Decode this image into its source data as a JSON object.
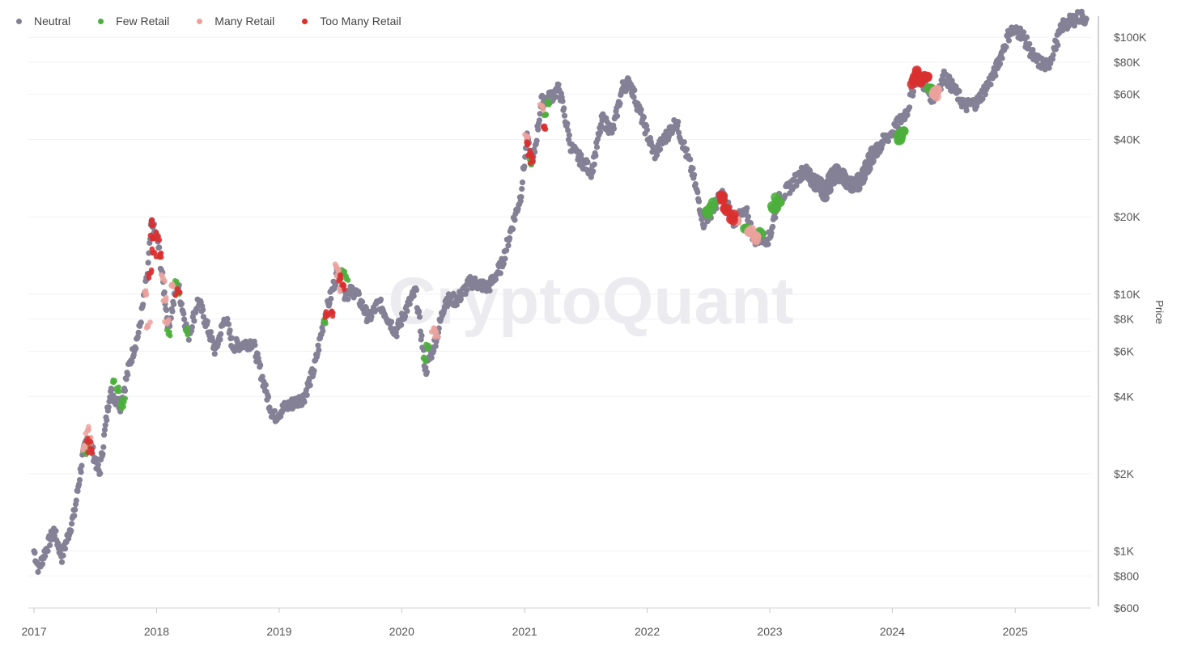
{
  "watermark": "CryptoQuant",
  "legend": [
    {
      "label": "Neutral",
      "color": "#848196"
    },
    {
      "label": "Few Retail",
      "color": "#4caf3c"
    },
    {
      "label": "Many Retail",
      "color": "#eba29c"
    },
    {
      "label": "Too Many Retail",
      "color": "#d93030"
    }
  ],
  "chart_data": {
    "type": "scatter",
    "title": "",
    "xlabel": "",
    "ylabel": "Price",
    "y_scale": "log",
    "ylim": [
      600,
      130000
    ],
    "xlim": [
      "2016-12-15",
      "2025-08-15"
    ],
    "x_ticks": [
      "2017",
      "2018",
      "2019",
      "2020",
      "2021",
      "2022",
      "2023",
      "2024",
      "2025"
    ],
    "y_ticks": [
      {
        "value": 100000,
        "label": "$100K"
      },
      {
        "value": 80000,
        "label": "$80K"
      },
      {
        "value": 60000,
        "label": "$60K"
      },
      {
        "value": 40000,
        "label": "$40K"
      },
      {
        "value": 20000,
        "label": "$20K"
      },
      {
        "value": 10000,
        "label": "$10K"
      },
      {
        "value": 8000,
        "label": "$8K"
      },
      {
        "value": 6000,
        "label": "$6K"
      },
      {
        "value": 4000,
        "label": "$4K"
      },
      {
        "value": 2000,
        "label": "$2K"
      },
      {
        "value": 1000,
        "label": "$1K"
      },
      {
        "value": 800,
        "label": "$800"
      },
      {
        "value": 600,
        "label": "$600"
      }
    ],
    "legend_position": "top-left",
    "price_path": [
      [
        "2017-01-01",
        1000
      ],
      [
        "2017-01-15",
        850
      ],
      [
        "2017-02-01",
        980
      ],
      [
        "2017-03-01",
        1200
      ],
      [
        "2017-03-25",
        950
      ],
      [
        "2017-05-01",
        1400
      ],
      [
        "2017-05-25",
        2300
      ],
      [
        "2017-06-10",
        2800
      ],
      [
        "2017-07-15",
        2000
      ],
      [
        "2017-08-15",
        4200
      ],
      [
        "2017-09-15",
        3700
      ],
      [
        "2017-10-15",
        5500
      ],
      [
        "2017-11-10",
        7200
      ],
      [
        "2017-12-05",
        12000
      ],
      [
        "2017-12-17",
        19000
      ],
      [
        "2018-01-05",
        16000
      ],
      [
        "2018-02-05",
        7500
      ],
      [
        "2018-03-05",
        11000
      ],
      [
        "2018-04-05",
        6800
      ],
      [
        "2018-05-05",
        9500
      ],
      [
        "2018-06-25",
        6000
      ],
      [
        "2018-07-25",
        8200
      ],
      [
        "2018-08-15",
        6300
      ],
      [
        "2018-10-15",
        6500
      ],
      [
        "2018-11-20",
        4300
      ],
      [
        "2018-12-15",
        3300
      ],
      [
        "2019-01-15",
        3600
      ],
      [
        "2019-03-15",
        3950
      ],
      [
        "2019-04-15",
        5100
      ],
      [
        "2019-05-15",
        8000
      ],
      [
        "2019-06-26",
        12500
      ],
      [
        "2019-07-15",
        10000
      ],
      [
        "2019-08-15",
        10300
      ],
      [
        "2019-09-25",
        8000
      ],
      [
        "2019-10-25",
        9300
      ],
      [
        "2019-12-15",
        7100
      ],
      [
        "2020-01-15",
        8800
      ],
      [
        "2020-02-12",
        10300
      ],
      [
        "2020-03-12",
        5000
      ],
      [
        "2020-04-15",
        6900
      ],
      [
        "2020-05-10",
        9500
      ],
      [
        "2020-06-15",
        9500
      ],
      [
        "2020-07-25",
        11200
      ],
      [
        "2020-09-15",
        10600
      ],
      [
        "2020-10-25",
        13000
      ],
      [
        "2020-11-25",
        18500
      ],
      [
        "2020-12-20",
        24000
      ],
      [
        "2021-01-08",
        40000
      ],
      [
        "2021-01-25",
        32000
      ],
      [
        "2021-02-20",
        56000
      ],
      [
        "2021-03-15",
        58000
      ],
      [
        "2021-04-14",
        63000
      ],
      [
        "2021-05-20",
        37000
      ],
      [
        "2021-06-20",
        33000
      ],
      [
        "2021-07-20",
        30000
      ],
      [
        "2021-08-20",
        48000
      ],
      [
        "2021-09-20",
        43000
      ],
      [
        "2021-10-20",
        64000
      ],
      [
        "2021-11-10",
        67000
      ],
      [
        "2021-12-20",
        47000
      ],
      [
        "2022-01-22",
        35000
      ],
      [
        "2022-03-28",
        47000
      ],
      [
        "2022-05-15",
        30000
      ],
      [
        "2022-06-18",
        19000
      ],
      [
        "2022-08-13",
        24500
      ],
      [
        "2022-09-15",
        19500
      ],
      [
        "2022-10-25",
        20500
      ],
      [
        "2022-11-15",
        16500
      ],
      [
        "2022-12-31",
        16500
      ],
      [
        "2023-01-25",
        23000
      ],
      [
        "2023-04-14",
        30500
      ],
      [
        "2023-06-15",
        25000
      ],
      [
        "2023-07-15",
        30000
      ],
      [
        "2023-09-15",
        26000
      ],
      [
        "2023-11-15",
        37000
      ],
      [
        "2023-12-30",
        42500
      ],
      [
        "2024-02-15",
        52000
      ],
      [
        "2024-03-14",
        72000
      ],
      [
        "2024-05-01",
        58000
      ],
      [
        "2024-06-05",
        71000
      ],
      [
        "2024-08-05",
        54000
      ],
      [
        "2024-09-10",
        56000
      ],
      [
        "2024-10-30",
        72000
      ],
      [
        "2024-12-17",
        106000
      ],
      [
        "2025-01-20",
        104000
      ],
      [
        "2025-02-28",
        82000
      ],
      [
        "2025-04-08",
        77000
      ],
      [
        "2025-05-22",
        111000
      ],
      [
        "2025-07-14",
        121000
      ],
      [
        "2025-07-31",
        118000
      ]
    ],
    "series": [
      {
        "name": "Few Retail",
        "points": [
          [
            "2017-06-01",
            2450
          ],
          [
            "2017-06-10",
            2650
          ],
          [
            "2017-08-28",
            4600
          ],
          [
            "2017-09-05",
            4300
          ],
          [
            "2017-09-18",
            3700
          ],
          [
            "2017-09-25",
            3800
          ],
          [
            "2018-02-06",
            7000
          ],
          [
            "2018-03-01",
            10900
          ],
          [
            "2018-03-08",
            10100
          ],
          [
            "2018-04-01",
            7200
          ],
          [
            "2019-05-15",
            7800
          ],
          [
            "2019-07-10",
            12300
          ],
          [
            "2019-07-20",
            11500
          ],
          [
            "2020-03-12",
            5500
          ],
          [
            "2020-03-20",
            6200
          ],
          [
            "2021-01-20",
            33000
          ],
          [
            "2021-03-05",
            50000
          ],
          [
            "2021-03-10",
            56000
          ],
          [
            "2022-06-28",
            21000
          ],
          [
            "2022-07-12",
            22000
          ],
          [
            "2022-10-25",
            18000
          ],
          [
            "2022-12-05",
            17200
          ],
          [
            "2023-01-14",
            21500
          ],
          [
            "2023-01-25",
            23000
          ],
          [
            "2024-01-24",
            40000
          ],
          [
            "2024-01-28",
            42500
          ],
          [
            "2024-04-25",
            63000
          ]
        ]
      },
      {
        "name": "Many Retail",
        "points": [
          [
            "2017-06-01",
            2550
          ],
          [
            "2017-06-10",
            2950
          ],
          [
            "2017-06-12",
            2700
          ],
          [
            "2017-12-01",
            10000
          ],
          [
            "2017-12-06",
            7500
          ],
          [
            "2018-01-20",
            11500
          ],
          [
            "2018-01-28",
            9500
          ],
          [
            "2018-02-01",
            7700
          ],
          [
            "2018-02-15",
            10800
          ],
          [
            "2019-06-20",
            12800
          ],
          [
            "2019-06-26",
            12000
          ],
          [
            "2019-07-02",
            10500
          ],
          [
            "2020-04-05",
            7200
          ],
          [
            "2020-04-12",
            7000
          ],
          [
            "2021-01-08",
            41000
          ],
          [
            "2021-02-21",
            54000
          ],
          [
            "2022-09-20",
            19500
          ],
          [
            "2022-11-01",
            17500
          ],
          [
            "2022-11-20",
            16600
          ],
          [
            "2024-05-05",
            60000
          ],
          [
            "2024-05-12",
            62000
          ]
        ]
      },
      {
        "name": "Too Many Retail",
        "points": [
          [
            "2017-06-12",
            2650
          ],
          [
            "2017-06-18",
            2500
          ],
          [
            "2017-12-17",
            19000
          ],
          [
            "2017-12-20",
            16500
          ],
          [
            "2017-12-25",
            14500
          ],
          [
            "2018-01-05",
            16800
          ],
          [
            "2018-01-10",
            14000
          ],
          [
            "2017-12-10",
            12000
          ],
          [
            "2018-03-05",
            10200
          ],
          [
            "2019-05-25",
            8300
          ],
          [
            "2019-06-05",
            8500
          ],
          [
            "2019-07-02",
            11500
          ],
          [
            "2019-07-12",
            10800
          ],
          [
            "2021-01-08",
            39000
          ],
          [
            "2021-01-15",
            35000
          ],
          [
            "2021-01-25",
            33000
          ],
          [
            "2021-03-01",
            45000
          ],
          [
            "2022-08-13",
            24000
          ],
          [
            "2022-08-25",
            21500
          ],
          [
            "2022-09-12",
            20000
          ],
          [
            "2024-03-05",
            68000
          ],
          [
            "2024-03-14",
            72000
          ],
          [
            "2024-03-25",
            69000
          ],
          [
            "2024-04-08",
            70000
          ]
        ]
      }
    ]
  }
}
